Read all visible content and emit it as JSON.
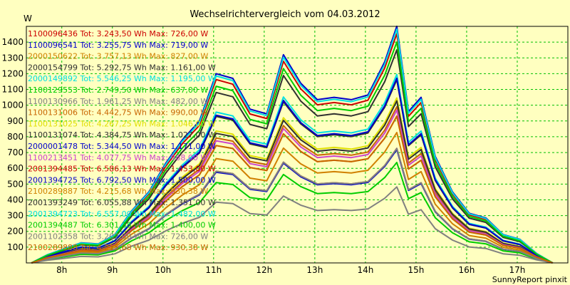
{
  "chart_data": {
    "type": "line",
    "title": "Wechselrichtervergleich vom 04.03.2012",
    "ylabel": "W",
    "footer": "SunnyReport pinxit",
    "ylim": [
      0,
      1500
    ],
    "yticks": [
      100,
      200,
      300,
      400,
      500,
      600,
      700,
      800,
      900,
      1000,
      1100,
      1200,
      1300,
      1400
    ],
    "xlim": [
      7.3,
      18.0
    ],
    "xticks": [
      {
        "v": 8,
        "label": "8h"
      },
      {
        "v": 9,
        "label": "9h"
      },
      {
        "v": 10,
        "label": "10h"
      },
      {
        "v": 11,
        "label": "11h"
      },
      {
        "v": 12,
        "label": "12h"
      },
      {
        "v": 13,
        "label": "13h"
      },
      {
        "v": 14,
        "label": "14h"
      },
      {
        "v": 15,
        "label": "15h"
      },
      {
        "v": 16,
        "label": "16h"
      },
      {
        "v": 17,
        "label": "17h"
      }
    ],
    "grid": true,
    "legend_position": "top-left",
    "x": [
      7.4,
      7.72,
      8.05,
      8.38,
      8.72,
      9.05,
      9.38,
      9.72,
      10.05,
      10.38,
      10.72,
      11.05,
      11.38,
      11.72,
      12.05,
      12.38,
      12.72,
      13.05,
      13.38,
      13.72,
      14.05,
      14.38,
      14.62,
      14.85,
      15.1,
      15.38,
      15.72,
      16.05,
      16.38,
      16.72,
      17.05,
      17.38,
      17.7
    ],
    "shape": [
      0.0,
      0.035,
      0.06,
      0.085,
      0.08,
      0.12,
      0.22,
      0.3,
      0.42,
      0.52,
      0.6,
      0.8,
      0.78,
      0.65,
      0.63,
      0.88,
      0.76,
      0.69,
      0.7,
      0.69,
      0.71,
      0.85,
      1.0,
      0.64,
      0.7,
      0.45,
      0.3,
      0.21,
      0.19,
      0.12,
      0.1,
      0.04,
      0.0
    ],
    "series": [
      {
        "name": "1100096436 Tot: 3.243,50 Wh Max: 726,00 W",
        "color": "#cc0000",
        "peak": 726
      },
      {
        "name": "1100096541 Tot: 3.255,75 Wh Max: 719,00 W",
        "color": "#0000cc",
        "peak": 719
      },
      {
        "name": "2000150622 Tot: 3.757,13 Wh Max: 827,00 W",
        "color": "#d08000",
        "peak": 827
      },
      {
        "name": "2000154799 Tot: 5.292,75 Wh Max: 1.161,00 W",
        "color": "#303030",
        "peak": 1161
      },
      {
        "name": "2000149892 Tot: 5.546,25 Wh Max: 1.195,00 W",
        "color": "#00e0e0",
        "peak": 1195
      },
      {
        "name": "1100129553 Tot: 2.749,50 Wh Max: 637,00 W",
        "color": "#00cc00",
        "peak": 637
      },
      {
        "name": "1100130966 Tot: 1.961,25 Wh Max: 482,00 W",
        "color": "#808080",
        "peak": 482
      },
      {
        "name": "1100131006 Tot: 4.442,75 Wh Max: 990,00 W",
        "color": "#c86400",
        "peak": 990
      },
      {
        "name": "1100131025 Tot: 4.267,25 Wh Max: 1.046,00 W",
        "color": "#e0e000",
        "peak": 1046
      },
      {
        "name": "1100131074 Tot: 4.384,75 Wh Max: 1.027,00 W",
        "color": "#303030",
        "peak": 1027
      },
      {
        "name": "2000001478 Tot: 5.344,50 Wh Max: 1.171,00 W",
        "color": "#0000cc",
        "peak": 1171
      },
      {
        "name": "1100213451 Tot: 4.077,75 Wh Max: 968,00 W",
        "color": "#cc44cc",
        "peak": 968
      },
      {
        "name": "2001394485 Tot: 6.586,13 Wh Max: 1.453,00 W",
        "color": "#cc0000",
        "peak": 1453
      },
      {
        "name": "2001394725 Tot: 6.792,50 Wh Max: 1.500,00 W",
        "color": "#0000cc",
        "peak": 1500
      },
      {
        "name": "2100289887 Tot: 4.215,68 Wh Max: 930,38 W",
        "color": "#d08000",
        "peak": 930.38
      },
      {
        "name": "2001393249 Tot: 6.055,88 Wh Max: 1.351,00 W",
        "color": "#303030",
        "peak": 1351
      },
      {
        "name": "2001394723 Tot: 6.557,00 Wh Max: 1.482,00 W",
        "color": "#00e0e0",
        "peak": 1482
      },
      {
        "name": "2001394487 Tot: 6.301,38 Wh Max: 1.400,00 W",
        "color": "#00cc00",
        "peak": 1400
      },
      {
        "name": "2001102358 Tot: 3.202,00 Wh Max: 726,00 W",
        "color": "#808080",
        "peak": 726
      },
      {
        "name": "2100289888 Tot: 4.215,68 Wh Max: 930,38 W",
        "color": "#c86400",
        "peak": 930.38
      }
    ]
  }
}
